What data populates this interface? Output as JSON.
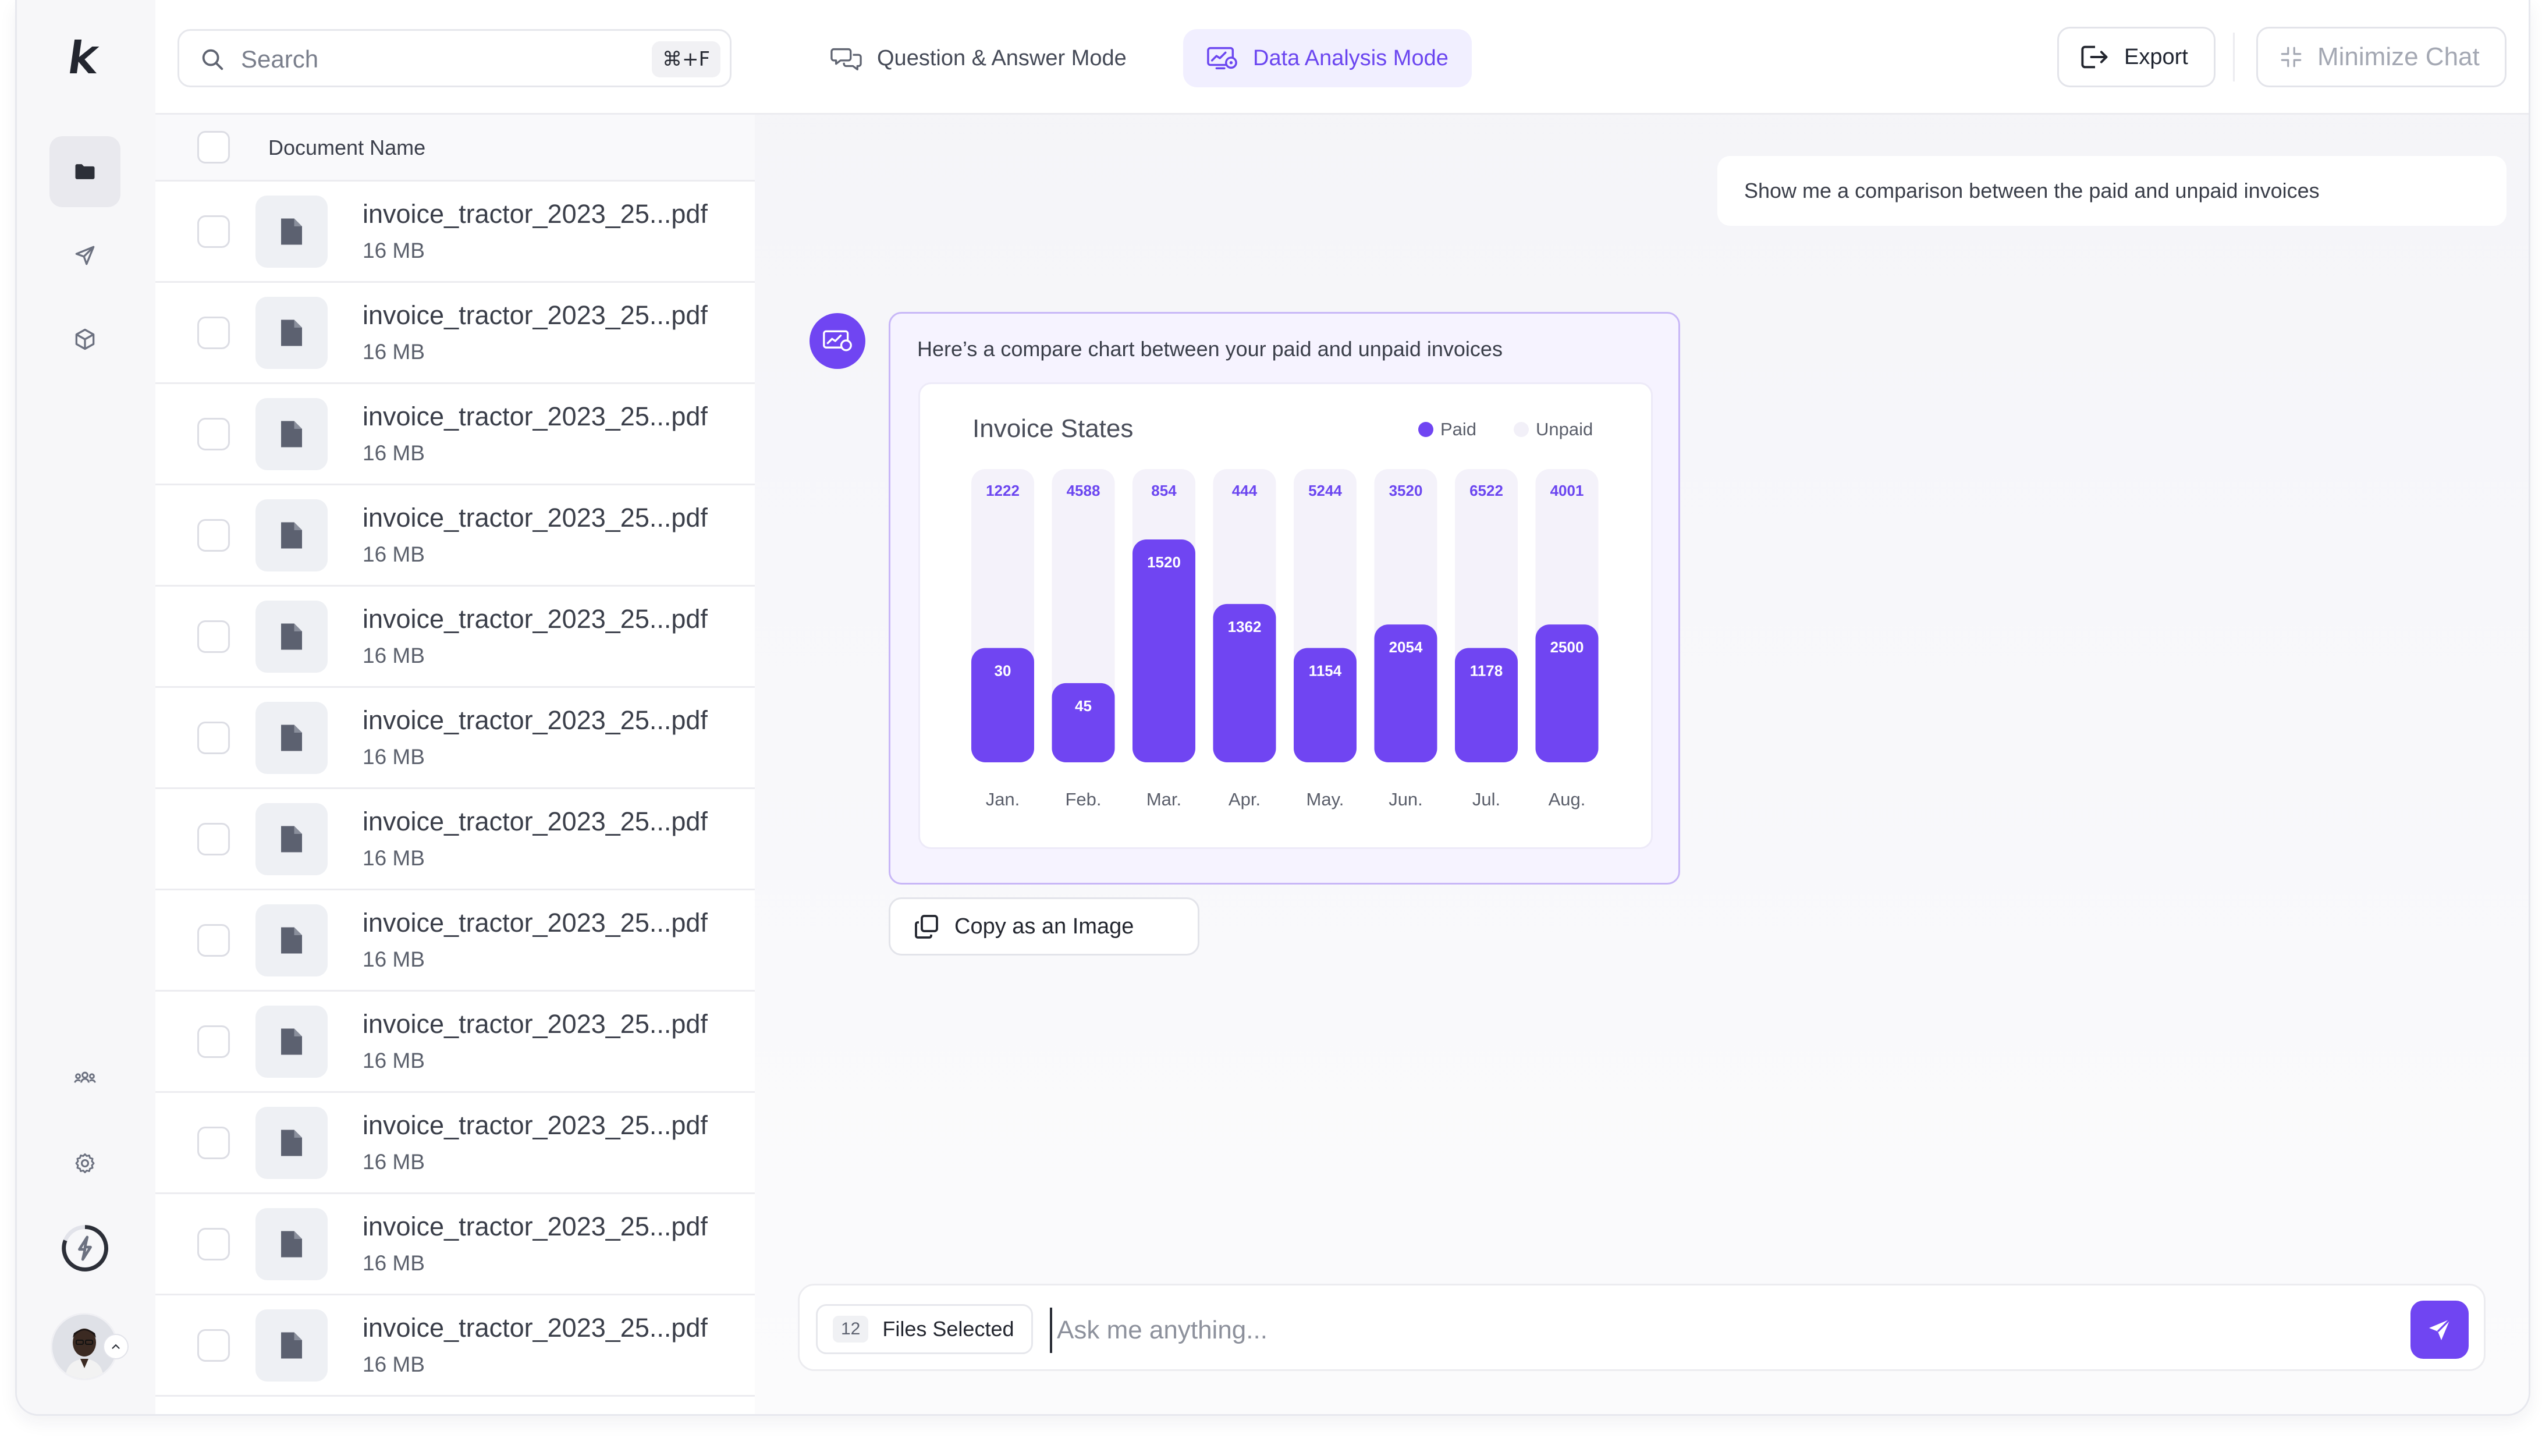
{
  "brand": {
    "logo_letter": "k"
  },
  "search": {
    "placeholder": "Search",
    "shortcut": "⌘+F"
  },
  "file_list": {
    "header": "Document Name",
    "files": [
      {
        "name": "invoice_tractor_2023_25...pdf",
        "size": "16 MB"
      },
      {
        "name": "invoice_tractor_2023_25...pdf",
        "size": "16 MB"
      },
      {
        "name": "invoice_tractor_2023_25...pdf",
        "size": "16 MB"
      },
      {
        "name": "invoice_tractor_2023_25...pdf",
        "size": "16 MB"
      },
      {
        "name": "invoice_tractor_2023_25...pdf",
        "size": "16 MB"
      },
      {
        "name": "invoice_tractor_2023_25...pdf",
        "size": "16 MB"
      },
      {
        "name": "invoice_tractor_2023_25...pdf",
        "size": "16 MB"
      },
      {
        "name": "invoice_tractor_2023_25...pdf",
        "size": "16 MB"
      },
      {
        "name": "invoice_tractor_2023_25...pdf",
        "size": "16 MB"
      },
      {
        "name": "invoice_tractor_2023_25...pdf",
        "size": "16 MB"
      },
      {
        "name": "invoice_tractor_2023_25...pdf",
        "size": "16 MB"
      },
      {
        "name": "invoice_tractor_2023_25...pdf",
        "size": "16 MB"
      }
    ]
  },
  "modes": {
    "qa": "Question & Answer Mode",
    "data": "Data Analysis Mode",
    "active": "data"
  },
  "toolbar": {
    "export": "Export",
    "minimize": "Minimize Chat"
  },
  "chat": {
    "user_message": "Show me a comparison between the paid and unpaid invoices",
    "bot_message": "Here’s a compare chart between your paid and unpaid invoices",
    "copy_button": "Copy as an Image"
  },
  "composer": {
    "files_count": "12",
    "files_label": "Files Selected",
    "placeholder": "Ask me anything..."
  },
  "colors": {
    "accent": "#7045f2",
    "paid": "#7045f2",
    "unpaid": "#f4f2fa",
    "unpaid_label": "#6b46f0"
  },
  "chart_data": {
    "type": "bar",
    "title": "Invoice States",
    "categories": [
      "Jan.",
      "Feb.",
      "Mar.",
      "Apr.",
      "May.",
      "Jun.",
      "Jul.",
      "Aug."
    ],
    "series": [
      {
        "name": "Paid",
        "values": [
          30,
          45,
          1520,
          1362,
          1154,
          2054,
          1178,
          2500
        ]
      },
      {
        "name": "Unpaid",
        "values": [
          1222,
          4588,
          854,
          444,
          5244,
          3520,
          6522,
          4001
        ]
      }
    ],
    "paid_fill_fraction": [
      0.39,
      0.27,
      0.76,
      0.54,
      0.39,
      0.47,
      0.39,
      0.47
    ],
    "legend_position": "top-right",
    "grid": false
  }
}
